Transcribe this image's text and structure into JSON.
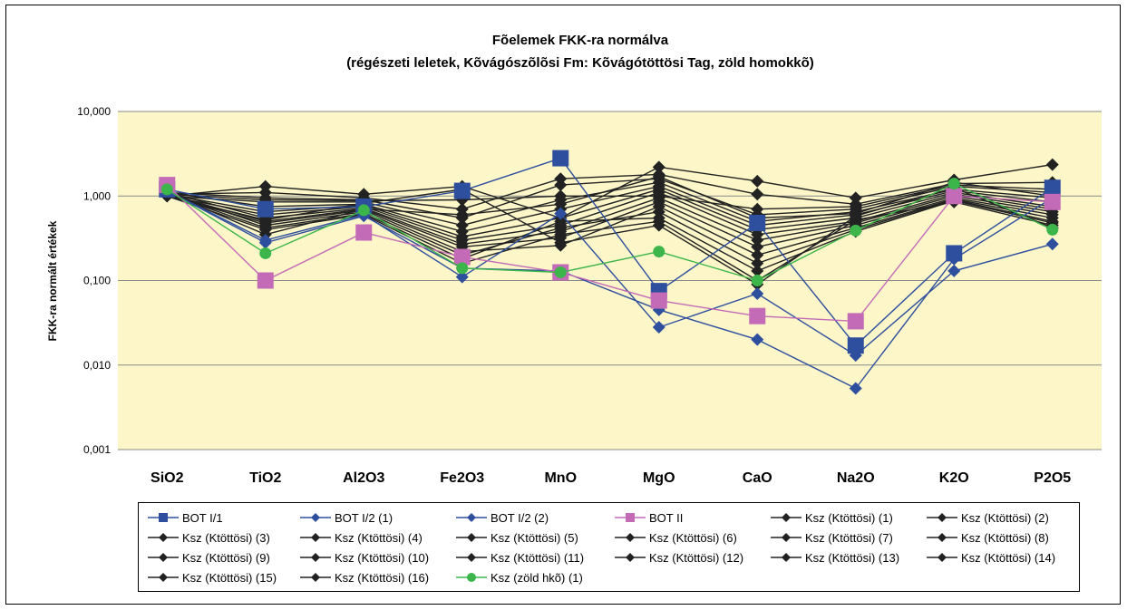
{
  "chart_data": {
    "type": "line",
    "title": "Fõelemek FKK-ra normálva",
    "subtitle": "(régészeti leletek, Kõvágószõlõsi Fm: Kõvágótöttösi Tag, zöld homokkõ)",
    "xlabel": "",
    "ylabel": "FKK-ra normált értékek",
    "y_scale": "log",
    "ylim": [
      0.001,
      10
    ],
    "y_ticks": [
      10,
      1,
      0.1,
      0.01,
      0.001
    ],
    "y_tick_labels": [
      "10,000",
      "1,000",
      "0,100",
      "0,010",
      "0,001"
    ],
    "categories": [
      "SiO2",
      "TiO2",
      "Al2O3",
      "Fe2O3",
      "MnO",
      "MgO",
      "CaO",
      "Na2O",
      "K2O",
      "P2O5"
    ],
    "plot_background": "#fcf6c8",
    "grid": "horizontal",
    "legend_position": "bottom",
    "series": [
      {
        "name": "BOT I/1",
        "color": "#2e4e9e",
        "marker": "square",
        "values": [
          1.2,
          0.7,
          0.75,
          1.15,
          2.8,
          0.075,
          0.48,
          0.017,
          0.21,
          1.25
        ]
      },
      {
        "name": "BOT I/2 (1)",
        "color": "#2e4e9e",
        "marker": "diamond",
        "values": [
          1.15,
          0.3,
          0.6,
          0.11,
          0.62,
          0.028,
          0.07,
          0.013,
          0.13,
          0.27
        ]
      },
      {
        "name": "BOT I/2 (2)",
        "color": "#2e4e9e",
        "marker": "diamond",
        "values": [
          1.15,
          0.28,
          0.58,
          0.14,
          0.13,
          0.045,
          0.02,
          0.0053,
          0.18,
          0.95
        ]
      },
      {
        "name": "BOT II",
        "color": "#c46bb8",
        "marker": "square",
        "values": [
          1.35,
          0.1,
          0.37,
          0.19,
          0.125,
          0.058,
          0.038,
          0.033,
          1.0,
          0.85
        ]
      },
      {
        "name": "Ksz (Ktöttösi) (1)",
        "color": "#222222",
        "marker": "diamond",
        "values": [
          1.0,
          1.3,
          1.05,
          1.3,
          0.55,
          2.2,
          1.5,
          0.95,
          1.55,
          2.35
        ]
      },
      {
        "name": "Ksz (Ktöttösi) (2)",
        "color": "#222222",
        "marker": "diamond",
        "values": [
          1.05,
          1.1,
          0.95,
          0.7,
          1.6,
          1.8,
          1.05,
          0.8,
          1.4,
          1.45
        ]
      },
      {
        "name": "Ksz (Ktöttösi) (3)",
        "color": "#222222",
        "marker": "diamond",
        "values": [
          1.1,
          0.95,
          0.9,
          0.55,
          1.35,
          1.6,
          0.6,
          0.7,
          1.3,
          1.1
        ]
      },
      {
        "name": "Ksz (Ktöttösi) (4)",
        "color": "#222222",
        "marker": "diamond",
        "values": [
          1.0,
          0.85,
          0.85,
          0.45,
          0.9,
          1.45,
          0.5,
          0.65,
          1.2,
          0.95
        ]
      },
      {
        "name": "Ksz (Ktöttösi) (5)",
        "color": "#222222",
        "marker": "diamond",
        "values": [
          1.1,
          0.75,
          0.8,
          0.38,
          0.7,
          1.3,
          0.45,
          0.6,
          1.15,
          0.85
        ]
      },
      {
        "name": "Ksz (Ktöttösi) (6)",
        "color": "#222222",
        "marker": "diamond",
        "values": [
          1.05,
          0.65,
          0.78,
          0.33,
          0.55,
          1.2,
          0.4,
          0.55,
          1.1,
          0.75
        ]
      },
      {
        "name": "Ksz (Ktöttösi) (7)",
        "color": "#222222",
        "marker": "diamond",
        "values": [
          1.0,
          0.6,
          0.75,
          0.3,
          0.45,
          1.1,
          0.35,
          0.5,
          1.05,
          0.7
        ]
      },
      {
        "name": "Ksz (Ktöttösi) (8)",
        "color": "#222222",
        "marker": "diamond",
        "values": [
          1.1,
          0.55,
          0.72,
          0.27,
          0.38,
          0.95,
          0.3,
          0.48,
          1.0,
          0.65
        ]
      },
      {
        "name": "Ksz (Ktöttösi) (9)",
        "color": "#222222",
        "marker": "diamond",
        "values": [
          1.05,
          0.5,
          0.7,
          0.25,
          0.32,
          0.85,
          0.25,
          0.45,
          0.95,
          0.6
        ]
      },
      {
        "name": "Ksz (Ktöttösi) (10)",
        "color": "#222222",
        "marker": "diamond",
        "values": [
          1.0,
          0.48,
          0.68,
          0.22,
          0.26,
          0.75,
          0.2,
          0.42,
          0.92,
          0.55
        ]
      },
      {
        "name": "Ksz (Ktöttösi) (11)",
        "color": "#222222",
        "marker": "diamond",
        "values": [
          1.1,
          0.45,
          0.65,
          0.2,
          0.42,
          0.65,
          0.16,
          0.4,
          0.9,
          0.5
        ]
      },
      {
        "name": "Ksz (Ktöttösi) (12)",
        "color": "#222222",
        "marker": "diamond",
        "values": [
          1.05,
          0.42,
          0.62,
          0.18,
          0.5,
          0.55,
          0.13,
          0.38,
          0.88,
          0.48
        ]
      },
      {
        "name": "Ksz (Ktöttösi) (13)",
        "color": "#222222",
        "marker": "diamond",
        "values": [
          1.0,
          0.4,
          0.6,
          0.16,
          0.35,
          0.5,
          0.1,
          0.52,
          0.85,
          0.45
        ]
      },
      {
        "name": "Ksz (Ktöttösi) (14)",
        "color": "#222222",
        "marker": "diamond",
        "values": [
          1.0,
          0.52,
          0.82,
          1.2,
          0.28,
          0.45,
          0.09,
          0.58,
          1.25,
          0.42
        ]
      },
      {
        "name": "Ksz (Ktöttösi) (15)",
        "color": "#222222",
        "marker": "diamond",
        "values": [
          1.05,
          0.9,
          0.88,
          0.9,
          1.0,
          1.0,
          0.7,
          0.75,
          1.35,
          1.2
        ]
      },
      {
        "name": "Ksz (Ktöttösi) (16)",
        "color": "#222222",
        "marker": "diamond",
        "values": [
          1.1,
          0.35,
          0.7,
          0.6,
          0.8,
          1.7,
          0.55,
          0.62,
          1.45,
          1.0
        ]
      },
      {
        "name": "Ksz (zöld hkõ) (1)",
        "color": "#3cb54a",
        "marker": "circle",
        "values": [
          1.2,
          0.21,
          0.68,
          0.14,
          0.125,
          0.22,
          0.1,
          0.39,
          1.4,
          0.4
        ]
      }
    ]
  }
}
